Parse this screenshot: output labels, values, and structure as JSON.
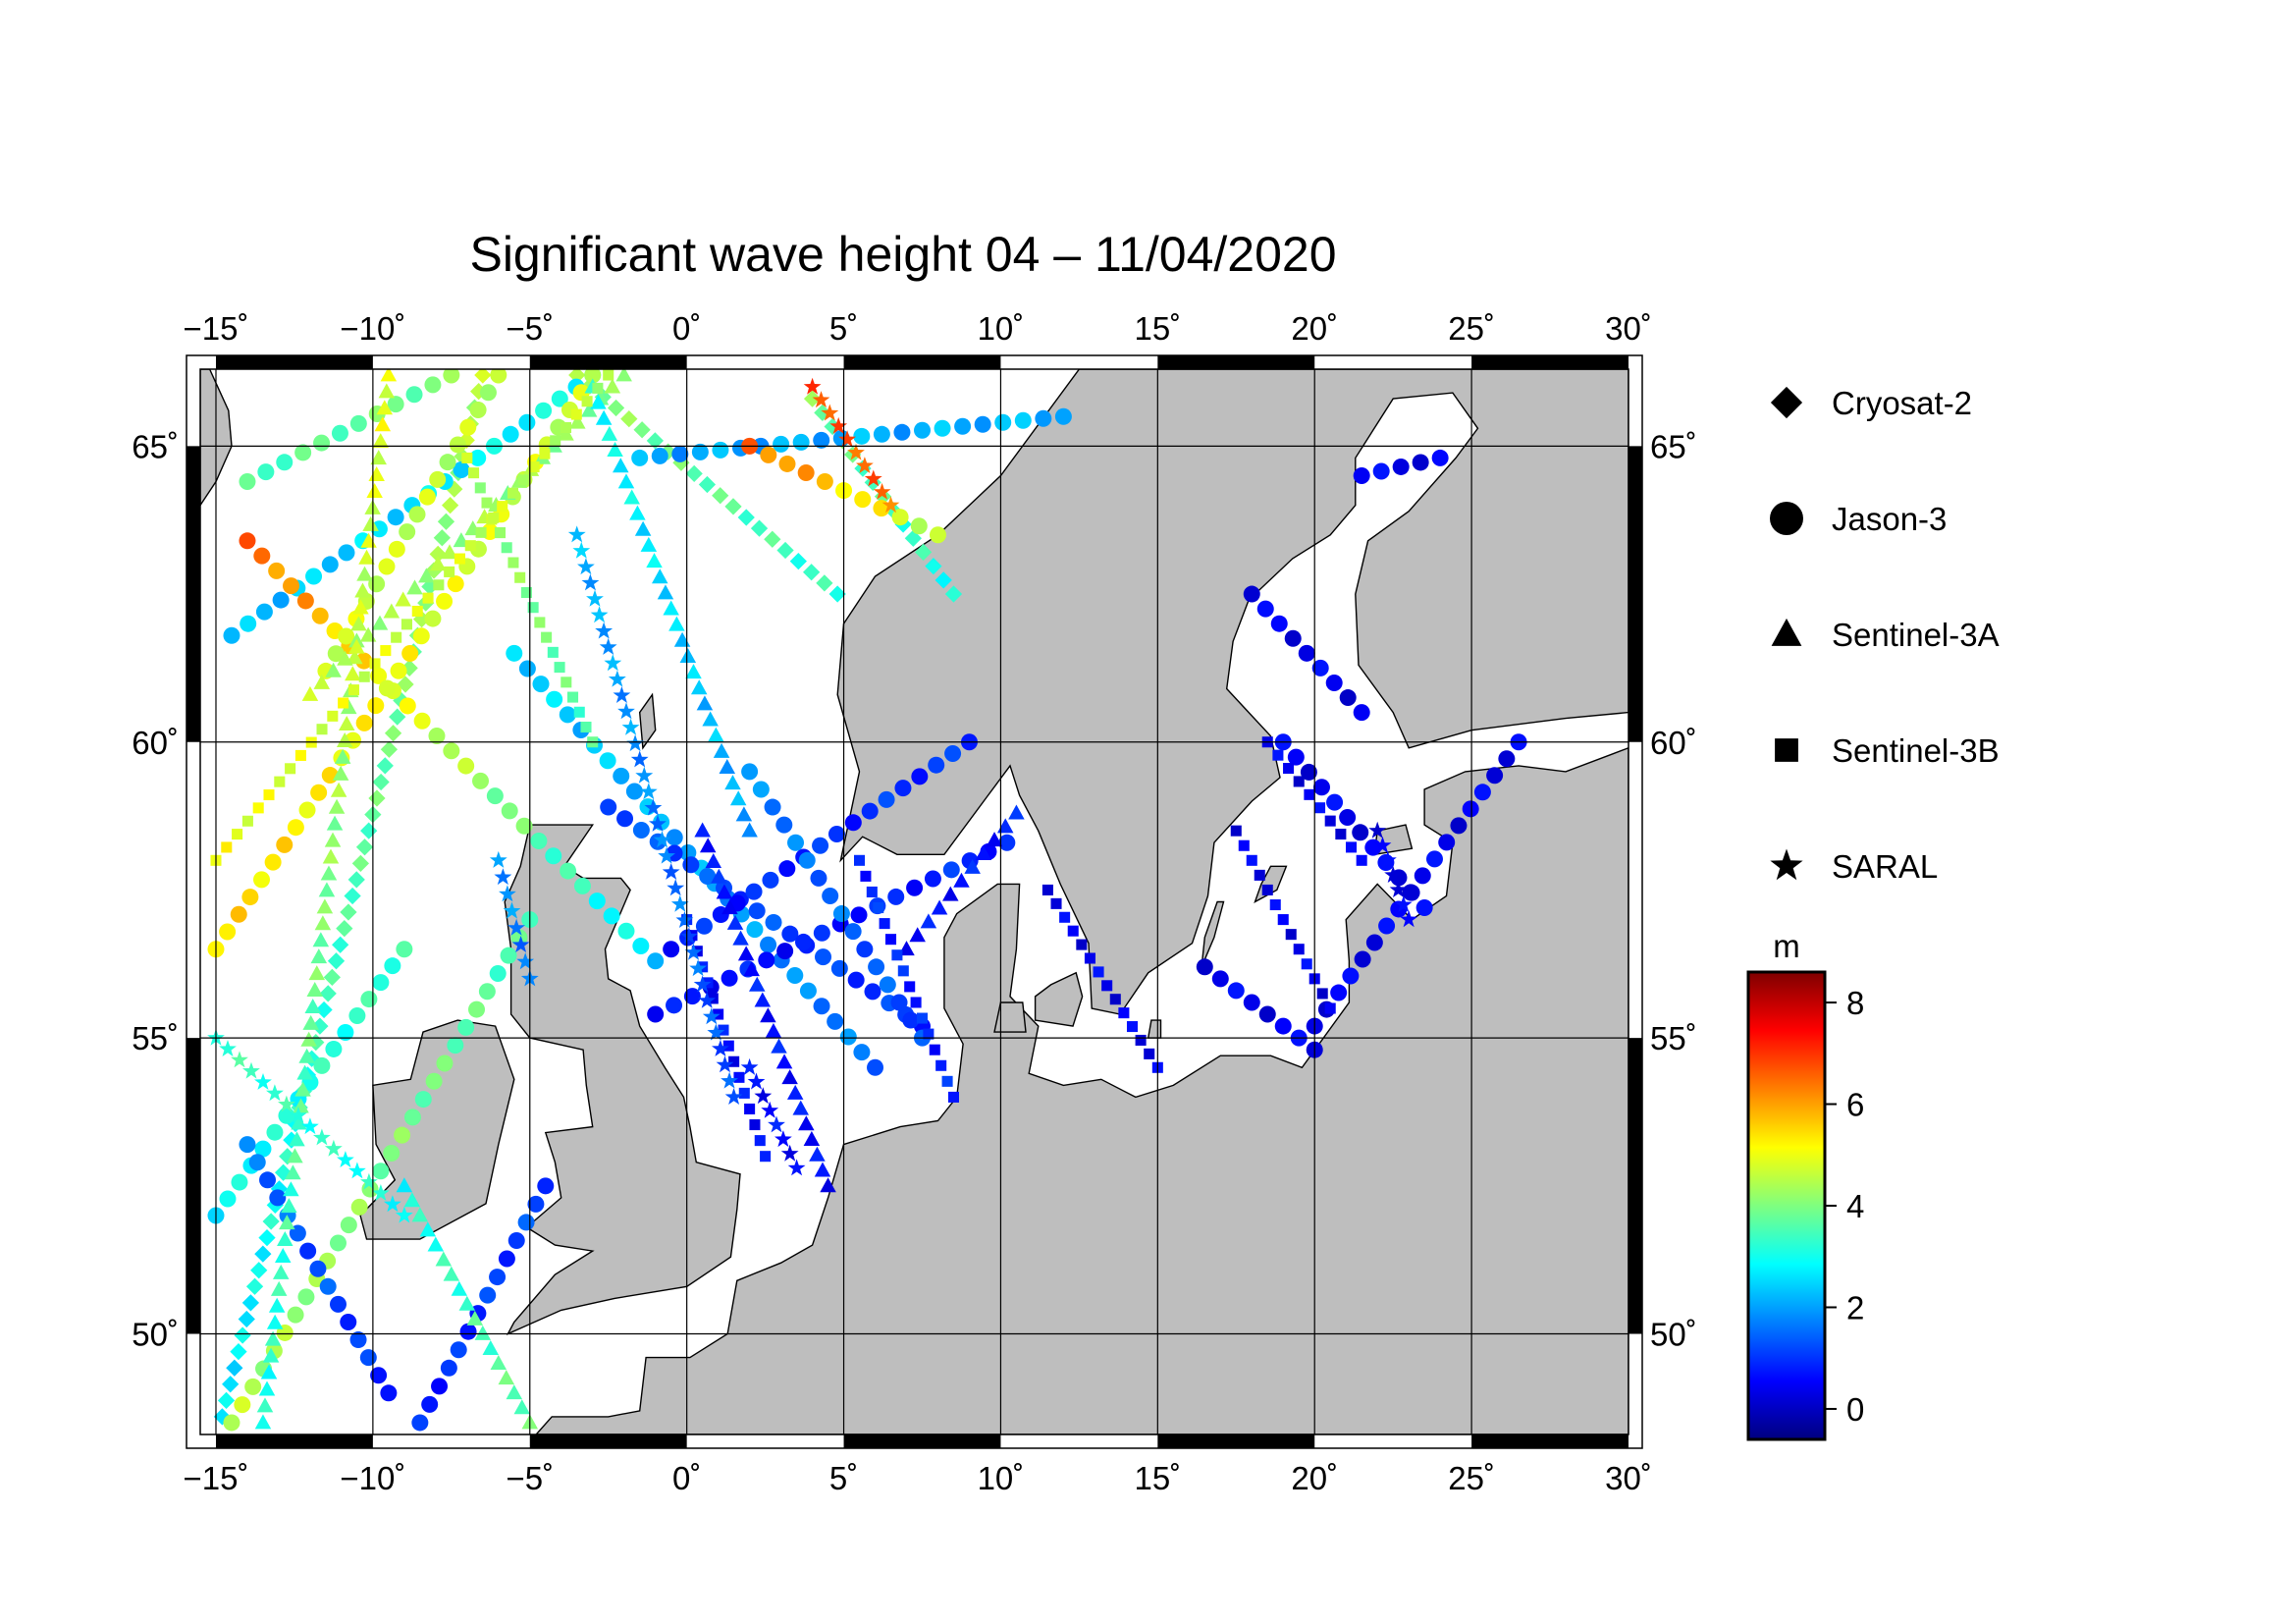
{
  "title": "Significant wave height 04 – 11/04/2020",
  "map": {
    "lon_range": [
      -15.5,
      30
    ],
    "lat_range": [
      48.3,
      66.3
    ],
    "land_color": "#bebebe",
    "sea_color": "#ffffff",
    "grid": true,
    "x_ticks": [
      {
        "value": -15,
        "label": "−15˚"
      },
      {
        "value": -10,
        "label": "−10˚"
      },
      {
        "value": -5,
        "label": "−5˚"
      },
      {
        "value": 0,
        "label": "0˚"
      },
      {
        "value": 5,
        "label": "5˚"
      },
      {
        "value": 10,
        "label": "10˚"
      },
      {
        "value": 15,
        "label": "15˚"
      },
      {
        "value": 20,
        "label": "20˚"
      },
      {
        "value": 25,
        "label": "25˚"
      },
      {
        "value": 30,
        "label": "30˚"
      }
    ],
    "y_ticks": [
      {
        "value": 50,
        "label": "50˚"
      },
      {
        "value": 55,
        "label": "55˚"
      },
      {
        "value": 60,
        "label": "60˚"
      },
      {
        "value": 65,
        "label": "65˚"
      }
    ]
  },
  "legend": {
    "items": [
      {
        "label": "Cryosat-2",
        "marker": "diamond"
      },
      {
        "label": "Jason-3",
        "marker": "circle"
      },
      {
        "label": "Sentinel-3A",
        "marker": "triangle"
      },
      {
        "label": "Sentinel-3B",
        "marker": "square"
      },
      {
        "label": "SARAL",
        "marker": "star"
      }
    ]
  },
  "colorbar": {
    "unit": "m",
    "min": -0.6,
    "max": 8.6,
    "ticks": [
      0,
      2,
      4,
      6,
      8
    ],
    "tick_labels": [
      "0",
      "2",
      "4",
      "6",
      "8"
    ],
    "colormap": [
      "#00007f",
      "#0000ff",
      "#007fff",
      "#00ffff",
      "#7fff7f",
      "#ffff00",
      "#ff7f00",
      "#ff0000",
      "#7f0000"
    ]
  },
  "chart_data": {
    "type": "scatter",
    "title": "Significant wave height 04 – 11/04/2020",
    "xlabel": "",
    "ylabel": "",
    "xlim": [
      -15.5,
      30
    ],
    "ylim": [
      48.3,
      66.3
    ],
    "value_unit": "m",
    "series": [
      {
        "name": "Cryosat-2",
        "marker": "diamond",
        "tracks": [
          {
            "from": [
              -14.8,
              48.6
            ],
            "to": [
              -6.5,
              66.2
            ],
            "hs": [
              2.6,
              4.5
            ]
          },
          {
            "from": [
              -3.5,
              66.2
            ],
            "to": [
              4.8,
              62.5
            ],
            "hs": [
              4.2,
              3.2
            ]
          },
          {
            "from": [
              4.0,
              65.8
            ],
            "to": [
              8.5,
              62.5
            ],
            "hs": [
              4.0,
              3.0
            ]
          }
        ]
      },
      {
        "name": "Jason-3",
        "marker": "circle",
        "tracks": [
          {
            "from": [
              -14.5,
              61.8
            ],
            "to": [
              -3.0,
              66.2
            ],
            "hs": [
              2.2,
              3.0
            ]
          },
          {
            "from": [
              -14.0,
              63.4
            ],
            "to": [
              -1.0,
              56.3
            ],
            "hs": [
              6.5,
              2.5
            ]
          },
          {
            "from": [
              -14.0,
              64.4
            ],
            "to": [
              -7.5,
              66.2
            ],
            "hs": [
              3.5,
              4.0
            ]
          },
          {
            "from": [
              -11.5,
              61.2
            ],
            "to": [
              -6.0,
              66.2
            ],
            "hs": [
              4.8,
              4.5
            ]
          },
          {
            "from": [
              -15.0,
              56.5
            ],
            "to": [
              -3.0,
              66.2
            ],
            "hs": [
              5.5,
              4.6
            ]
          },
          {
            "from": [
              -15.0,
              52.0
            ],
            "to": [
              -9.0,
              56.5
            ],
            "hs": [
              2.8,
              3.4
            ]
          },
          {
            "from": [
              -14.5,
              48.5
            ],
            "to": [
              -5.0,
              57.0
            ],
            "hs": [
              4.5,
              3.5
            ]
          },
          {
            "from": [
              -14.0,
              53.2
            ],
            "to": [
              -9.5,
              49.0
            ],
            "hs": [
              1.6,
              0.9
            ]
          },
          {
            "from": [
              -8.5,
              48.5
            ],
            "to": [
              -4.5,
              52.5
            ],
            "hs": [
              0.8,
              1.2
            ]
          },
          {
            "from": [
              -5.5,
              61.5
            ],
            "to": [
              6.0,
              54.5
            ],
            "hs": [
              2.5,
              1.6
            ]
          },
          {
            "from": [
              -2.5,
              58.9
            ],
            "to": [
              7.5,
              55.2
            ],
            "hs": [
              1.3,
              1.0
            ]
          },
          {
            "from": [
              -0.5,
              56.5
            ],
            "to": [
              9.0,
              60.0
            ],
            "hs": [
              0.8,
              1.0
            ]
          },
          {
            "from": [
              -1.0,
              55.4
            ],
            "to": [
              10.2,
              58.3
            ],
            "hs": [
              0.6,
              0.9
            ]
          },
          {
            "from": [
              2.0,
              59.5
            ],
            "to": [
              7.5,
              55.0
            ],
            "hs": [
              1.8,
              1.2
            ]
          },
          {
            "from": [
              -1.5,
              64.8
            ],
            "to": [
              12.0,
              65.5
            ],
            "hs": [
              2.0,
              2.2
            ]
          },
          {
            "from": [
              2.0,
              65.0
            ],
            "to": [
              8.0,
              63.5
            ],
            "hs": [
              6.5,
              4.5
            ]
          },
          {
            "from": [
              20.0,
              55.2
            ],
            "to": [
              26.5,
              60.0
            ],
            "hs": [
              0.4,
              0.4
            ]
          },
          {
            "from": [
              16.5,
              56.2
            ],
            "to": [
              20.0,
              54.8
            ],
            "hs": [
              0.4,
              0.4
            ]
          },
          {
            "from": [
              18.0,
              62.5
            ],
            "to": [
              21.5,
              60.5
            ],
            "hs": [
              0.4,
              0.4
            ]
          },
          {
            "from": [
              21.5,
              64.5
            ],
            "to": [
              24.0,
              64.8
            ],
            "hs": [
              0.4,
              0.4
            ]
          },
          {
            "from": [
              19.0,
              60.0
            ],
            "to": [
              23.5,
              57.2
            ],
            "hs": [
              0.4,
              0.4
            ]
          }
        ]
      },
      {
        "name": "Sentinel-3A",
        "marker": "triangle",
        "tracks": [
          {
            "from": [
              -13.5,
              48.5
            ],
            "to": [
              -9.5,
              66.2
            ],
            "hs": [
              3.0,
              5.0
            ]
          },
          {
            "from": [
              -12.0,
              60.8
            ],
            "to": [
              -2.0,
              66.2
            ],
            "hs": [
              4.5,
              4.0
            ]
          },
          {
            "from": [
              -3.0,
              66.0
            ],
            "to": [
              2.0,
              58.5
            ],
            "hs": [
              3.0,
              2.0
            ]
          },
          {
            "from": [
              0.5,
              58.5
            ],
            "to": [
              4.5,
              52.5
            ],
            "hs": [
              0.8,
              0.6
            ]
          },
          {
            "from": [
              7.0,
              56.5
            ],
            "to": [
              10.5,
              58.8
            ],
            "hs": [
              0.6,
              0.8
            ]
          },
          {
            "from": [
              -9.0,
              52.5
            ],
            "to": [
              -5.0,
              48.5
            ],
            "hs": [
              3.0,
              3.8
            ]
          }
        ]
      },
      {
        "name": "Sentinel-3B",
        "marker": "square",
        "tracks": [
          {
            "from": [
              -15.0,
              58.0
            ],
            "to": [
              -2.5,
              66.2
            ],
            "hs": [
              5.0,
              4.5
            ]
          },
          {
            "from": [
              -7.0,
              64.8
            ],
            "to": [
              -3.0,
              60.0
            ],
            "hs": [
              4.5,
              3.5
            ]
          },
          {
            "from": [
              0.0,
              57.0
            ],
            "to": [
              2.5,
              53.0
            ],
            "hs": [
              0.6,
              0.6
            ]
          },
          {
            "from": [
              5.5,
              58.0
            ],
            "to": [
              8.5,
              54.0
            ],
            "hs": [
              0.9,
              0.8
            ]
          },
          {
            "from": [
              11.5,
              57.5
            ],
            "to": [
              15.0,
              54.5
            ],
            "hs": [
              0.4,
              0.4
            ]
          },
          {
            "from": [
              17.5,
              58.5
            ],
            "to": [
              20.5,
              55.5
            ],
            "hs": [
              0.4,
              0.4
            ]
          },
          {
            "from": [
              18.5,
              60.0
            ],
            "to": [
              21.5,
              58.0
            ],
            "hs": [
              0.4,
              0.4
            ]
          }
        ]
      },
      {
        "name": "SARAL",
        "marker": "star",
        "tracks": [
          {
            "from": [
              -3.5,
              63.5
            ],
            "to": [
              1.5,
              54.0
            ],
            "hs": [
              2.2,
              1.2
            ]
          },
          {
            "from": [
              2.0,
              54.5
            ],
            "to": [
              3.5,
              52.8
            ],
            "hs": [
              0.6,
              0.6
            ]
          },
          {
            "from": [
              4.0,
              66.0
            ],
            "to": [
              6.5,
              64.0
            ],
            "hs": [
              6.8,
              6.5
            ]
          },
          {
            "from": [
              -6.0,
              58.0
            ],
            "to": [
              -5.0,
              56.0
            ],
            "hs": [
              2.0,
              1.5
            ]
          },
          {
            "from": [
              -15.0,
              55.0
            ],
            "to": [
              -9.0,
              52.0
            ],
            "hs": [
              3.4,
              3.0
            ]
          },
          {
            "from": [
              22.0,
              58.5
            ],
            "to": [
              23.0,
              57.0
            ],
            "hs": [
              0.4,
              0.4
            ]
          }
        ]
      }
    ]
  }
}
